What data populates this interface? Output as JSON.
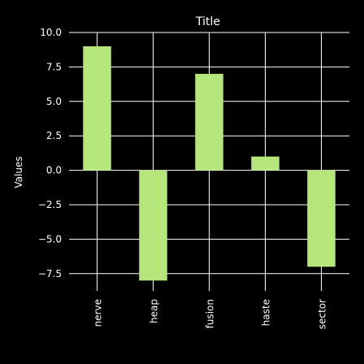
{
  "chart_data": {
    "type": "bar",
    "title": "Title",
    "xlabel": "",
    "ylabel": "Values",
    "categories": [
      "nerve",
      "heap",
      "fusion",
      "haste",
      "sector"
    ],
    "values": [
      9,
      -8,
      7,
      1,
      -7
    ],
    "ylim": [
      -8.75,
      10
    ],
    "yticks": [
      -7.5,
      -5,
      -2.5,
      0,
      2.5,
      5,
      7.5,
      10
    ],
    "ytick_labels": [
      "−7.5",
      "−5.0",
      "−2.5",
      "0.0",
      "2.5",
      "5.0",
      "7.5",
      "10.0"
    ],
    "grid": true,
    "legend": "none",
    "colors": {
      "bar": "#b5e67a",
      "background": "#000000",
      "grid": "#ffffff",
      "text": "#ffffff"
    }
  }
}
